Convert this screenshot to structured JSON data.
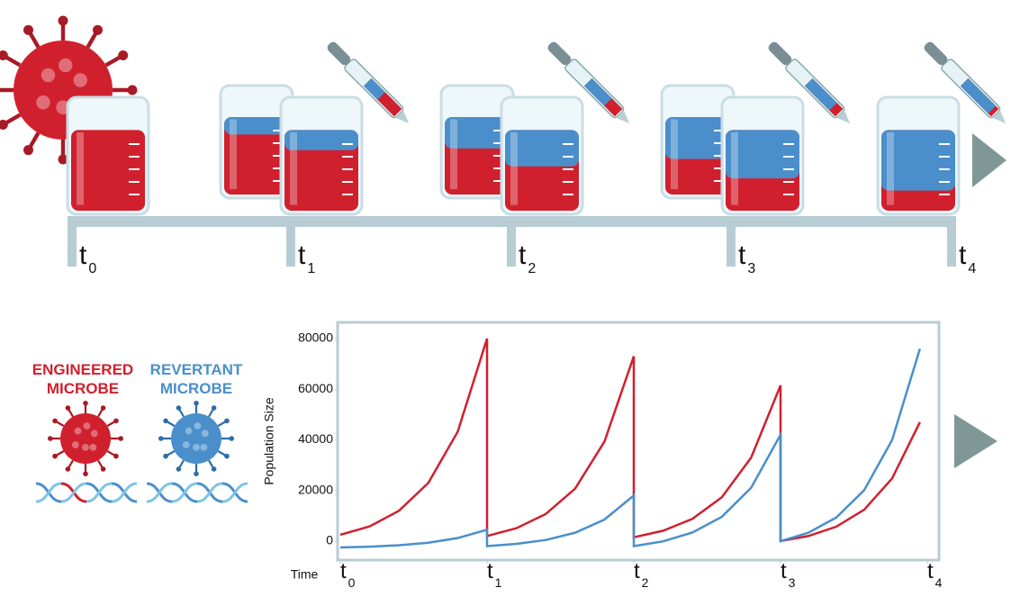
{
  "timeline": {
    "labels": [
      {
        "main": "t",
        "sub": "0"
      },
      {
        "main": "t",
        "sub": "1"
      },
      {
        "main": "t",
        "sub": "2"
      },
      {
        "main": "t",
        "sub": "3"
      },
      {
        "main": "t",
        "sub": "4"
      }
    ]
  },
  "chart_data": {
    "type": "line",
    "x_label": "Time",
    "y_label": "Population Size",
    "x": [
      0,
      0.2,
      0.4,
      0.6,
      0.8,
      1,
      1,
      1.2,
      1.4,
      1.6,
      1.8,
      2,
      2,
      2.2,
      2.4,
      2.6,
      2.8,
      3,
      3,
      3.19,
      3.38,
      3.57,
      3.76,
      3.95
    ],
    "series": [
      {
        "name": "ENGINEERED MICROBE",
        "color": "#d0202e",
        "values": [
          2500,
          5800,
          12000,
          23000,
          43200,
          80000,
          2000,
          5100,
          10700,
          20700,
          39300,
          73000,
          1500,
          4100,
          8800,
          17300,
          33000,
          61500,
          0,
          2000,
          5700,
          12400,
          24700,
          47000
        ]
      },
      {
        "name": "REVERTANT MICROBE",
        "color": "#4a8fcb",
        "values": [
          -2500,
          -2200,
          -1650,
          -650,
          1200,
          4500,
          -2000,
          -1100,
          440,
          3300,
          8500,
          18000,
          -2000,
          -100,
          3400,
          9600,
          21100,
          42000,
          0,
          3300,
          9300,
          20100,
          39900,
          76000
        ]
      }
    ],
    "xlim": [
      0,
      4
    ],
    "xticks": [
      {
        "value": 0,
        "label": "t",
        "sub": "0"
      },
      {
        "value": 1,
        "label": "t",
        "sub": "1"
      },
      {
        "value": 2,
        "label": "t",
        "sub": "2"
      },
      {
        "value": 3,
        "label": "t",
        "sub": "3"
      },
      {
        "value": 4,
        "label": "t",
        "sub": "4"
      }
    ],
    "ylim": [
      -7500,
      86400
    ],
    "yticks": [
      0,
      20000,
      40000,
      60000,
      80000
    ],
    "grid": false
  }
}
